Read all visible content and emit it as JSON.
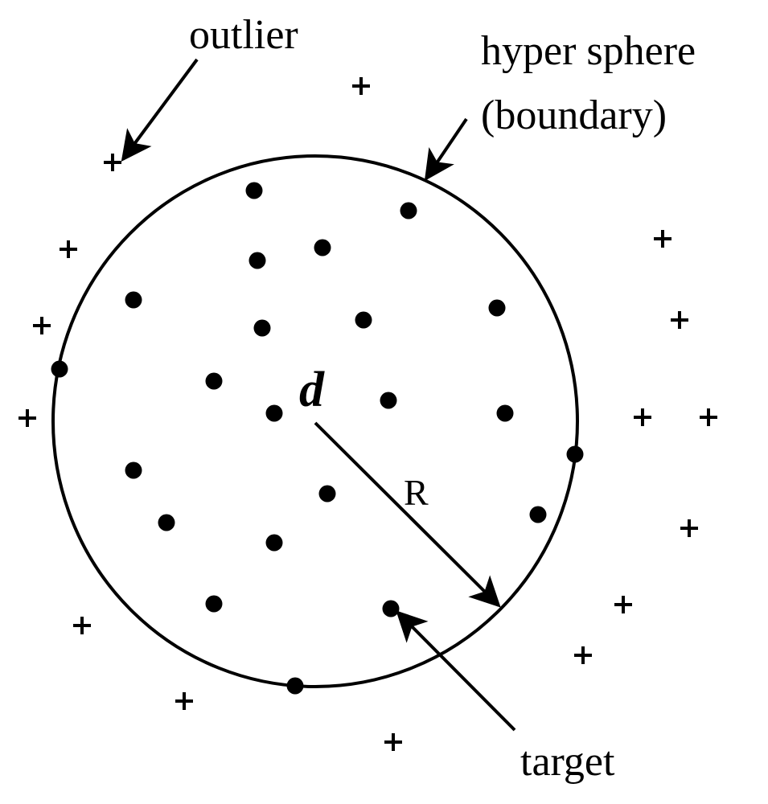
{
  "labels": {
    "outlier": "outlier",
    "boundary_line1": "hyper sphere",
    "boundary_line2": "(boundary)",
    "center": "d",
    "radius": "R",
    "target": "target"
  },
  "symbols": {
    "target_point": "filled-dot",
    "outlier_point": "plus-sign"
  },
  "colors": {
    "ink": "#000000",
    "background": "#ffffff"
  }
}
